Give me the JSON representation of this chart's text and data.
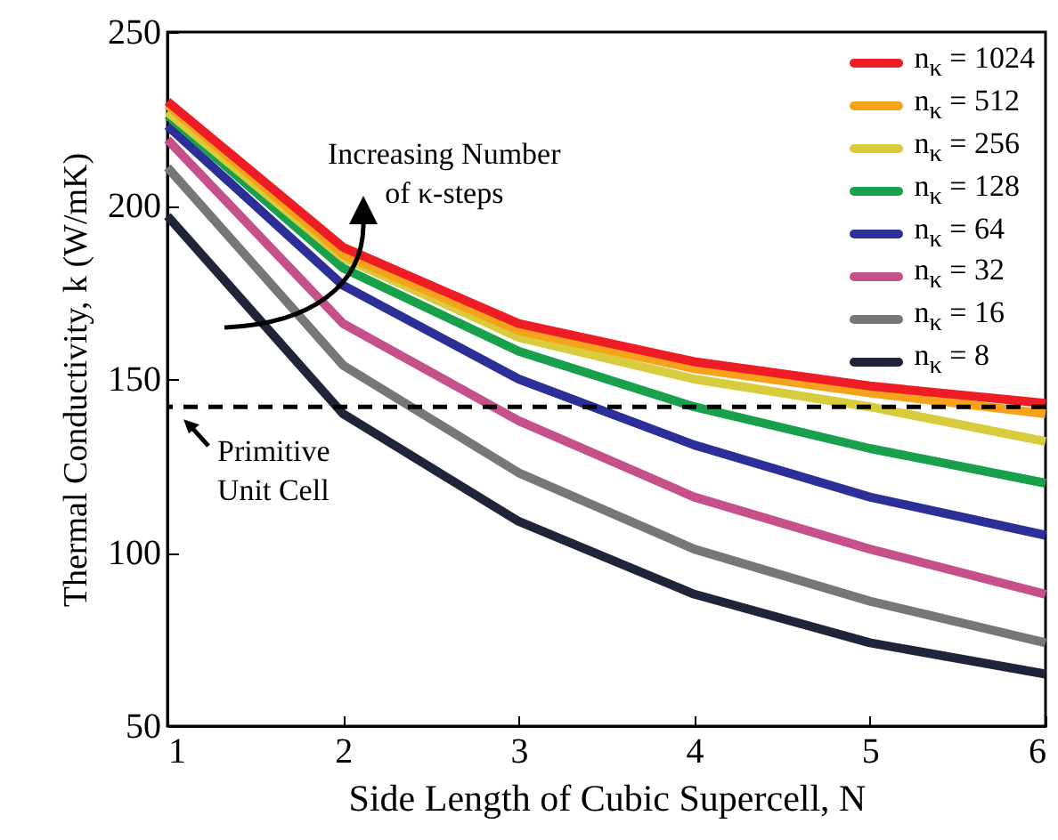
{
  "chart_data": {
    "type": "line",
    "xlabel": "Side Length of Cubic Supercell, N",
    "ylabel": "Thermal Conductivity, k (W/mK)",
    "x": [
      1,
      2,
      3,
      4,
      5,
      6
    ],
    "series": [
      {
        "name": "n$_{κ}$ = 1024",
        "color": "#ee1c24",
        "values": [
          230,
          188,
          166,
          155,
          148,
          143
        ]
      },
      {
        "name": "n$_{κ}$ = 512",
        "color": "#f7a21b",
        "values": [
          229,
          186,
          164,
          153,
          146,
          140
        ]
      },
      {
        "name": "n$_{κ}$ = 256",
        "color": "#d9cc3c",
        "values": [
          227,
          185,
          162,
          150,
          142,
          132
        ]
      },
      {
        "name": "n$_{κ}$ = 128",
        "color": "#18a04a",
        "values": [
          226,
          182,
          158,
          142,
          130,
          120
        ]
      },
      {
        "name": "n$_{κ}$ = 64",
        "color": "#2b2f97",
        "values": [
          223,
          177,
          150,
          131,
          116,
          105
        ]
      },
      {
        "name": "n$_{κ}$ = 32",
        "color": "#c5508a",
        "values": [
          219,
          166,
          138,
          116,
          101,
          88
        ]
      },
      {
        "name": "n$_{κ}$ = 16",
        "color": "#777777",
        "values": [
          211,
          154,
          123,
          101,
          86,
          74
        ]
      },
      {
        "name": "n$_{κ}$ = 8",
        "color": "#1f2438",
        "values": [
          197,
          140,
          109,
          88,
          74,
          65
        ]
      }
    ],
    "xlim": [
      1,
      6
    ],
    "xticks": [
      1,
      2,
      3,
      4,
      5,
      6
    ],
    "ylim": [
      50,
      250
    ],
    "yticks": [
      50,
      100,
      150,
      200,
      250
    ],
    "ref_lines": [
      {
        "axis": "y",
        "value": 142,
        "label": "Primitive\nUnit Cell",
        "color": "#000000",
        "line_style": "dashed"
      }
    ],
    "annotations": [
      "Increasing Number\nof κ-steps"
    ],
    "legend": "top right"
  }
}
